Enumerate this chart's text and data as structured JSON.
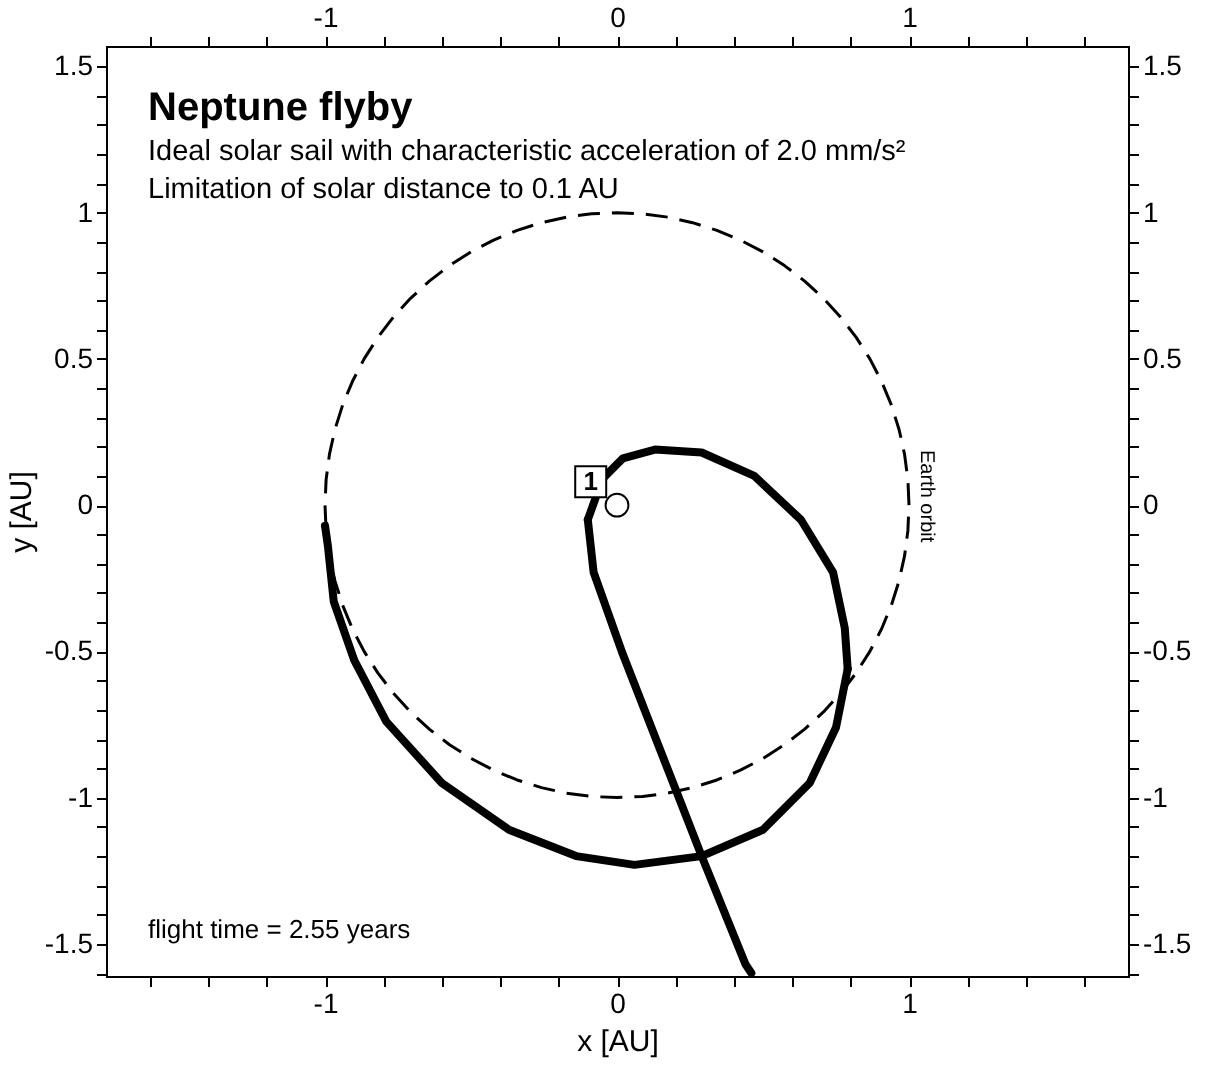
{
  "chart_data": {
    "type": "line",
    "title": "Neptune flyby",
    "subtitle": "Ideal solar sail with characteristic acceleration of 2.0 mm/s²\nLimitation of solar distance to 0.1 AU",
    "xlabel": "x [AU]",
    "ylabel": "y [AU]",
    "xlim": [
      -1.75,
      1.75
    ],
    "ylim": [
      -1.61,
      1.57
    ],
    "x2lim": [
      -1.75,
      1.75
    ],
    "y2lim": [
      -1.61,
      1.57
    ],
    "xticks": [
      {
        "value": -1.6,
        "label": null
      },
      {
        "value": -1.4,
        "label": null
      },
      {
        "value": -1.2,
        "label": null
      },
      -1,
      {
        "value": -0.8,
        "label": null
      },
      {
        "value": -0.6,
        "label": null
      },
      {
        "value": -0.4,
        "label": null
      },
      {
        "value": -0.2,
        "label": null
      },
      0,
      {
        "value": 0.2,
        "label": null
      },
      {
        "value": 0.4,
        "label": null
      },
      {
        "value": 0.6,
        "label": null
      },
      {
        "value": 0.8,
        "label": null
      },
      1,
      {
        "value": 1.2,
        "label": null
      },
      {
        "value": 1.4,
        "label": null
      },
      {
        "value": 1.6,
        "label": null
      }
    ],
    "x2ticks": [
      {
        "value": -1.6,
        "label": null
      },
      {
        "value": -1.4,
        "label": null
      },
      {
        "value": -1.2,
        "label": null
      },
      -1,
      {
        "value": -0.8,
        "label": null
      },
      {
        "value": -0.6,
        "label": null
      },
      {
        "value": -0.4,
        "label": null
      },
      {
        "value": -0.2,
        "label": null
      },
      0,
      {
        "value": 0.2,
        "label": null
      },
      {
        "value": 0.4,
        "label": null
      },
      {
        "value": 0.6,
        "label": null
      },
      {
        "value": 0.8,
        "label": null
      },
      1,
      {
        "value": 1.2,
        "label": null
      },
      {
        "value": 1.4,
        "label": null
      },
      {
        "value": 1.6,
        "label": null
      }
    ],
    "yticks": [
      {
        "value": -1.6,
        "label": null
      },
      -1.5,
      {
        "value": -1.4,
        "label": null
      },
      {
        "value": -1.3,
        "label": null
      },
      {
        "value": -1.2,
        "label": null
      },
      {
        "value": -1.1,
        "label": null
      },
      -1,
      {
        "value": -0.9,
        "label": null
      },
      {
        "value": -0.8,
        "label": null
      },
      {
        "value": -0.7,
        "label": null
      },
      {
        "value": -0.6,
        "label": null
      },
      -0.5,
      {
        "value": -0.4,
        "label": null
      },
      {
        "value": -0.3,
        "label": null
      },
      {
        "value": -0.2,
        "label": null
      },
      {
        "value": -0.1,
        "label": null
      },
      0,
      {
        "value": 0.1,
        "label": null
      },
      {
        "value": 0.2,
        "label": null
      },
      {
        "value": 0.3,
        "label": null
      },
      {
        "value": 0.4,
        "label": null
      },
      0.5,
      {
        "value": 0.6,
        "label": null
      },
      {
        "value": 0.7,
        "label": null
      },
      {
        "value": 0.8,
        "label": null
      },
      {
        "value": 0.9,
        "label": null
      },
      1,
      {
        "value": 1.1,
        "label": null
      },
      {
        "value": 1.2,
        "label": null
      },
      {
        "value": 1.3,
        "label": null
      },
      {
        "value": 1.4,
        "label": null
      },
      1.5
    ],
    "y2ticks": [
      {
        "value": -1.6,
        "label": null
      },
      -1.5,
      {
        "value": -1.4,
        "label": null
      },
      {
        "value": -1.3,
        "label": null
      },
      {
        "value": -1.2,
        "label": null
      },
      {
        "value": -1.1,
        "label": null
      },
      -1,
      {
        "value": -0.9,
        "label": null
      },
      {
        "value": -0.8,
        "label": null
      },
      {
        "value": -0.7,
        "label": null
      },
      {
        "value": -0.6,
        "label": null
      },
      -0.5,
      {
        "value": -0.4,
        "label": null
      },
      {
        "value": -0.3,
        "label": null
      },
      {
        "value": -0.2,
        "label": null
      },
      {
        "value": -0.1,
        "label": null
      },
      0,
      {
        "value": 0.1,
        "label": null
      },
      {
        "value": 0.2,
        "label": null
      },
      {
        "value": 0.3,
        "label": null
      },
      {
        "value": 0.4,
        "label": null
      },
      0.5,
      {
        "value": 0.6,
        "label": null
      },
      {
        "value": 0.7,
        "label": null
      },
      {
        "value": 0.8,
        "label": null
      },
      {
        "value": 0.9,
        "label": null
      },
      1,
      {
        "value": 1.1,
        "label": null
      },
      {
        "value": 1.2,
        "label": null
      },
      {
        "value": 1.3,
        "label": null
      },
      {
        "value": 1.4,
        "label": null
      },
      1.5
    ],
    "grid": false,
    "series": [
      {
        "line_style": "solid",
        "color": "#000000",
        "x": [
          -1.0,
          -0.99,
          -0.97,
          -0.9,
          -0.79,
          -0.6,
          -0.37,
          -0.14,
          0.06,
          0.29,
          0.5,
          0.66,
          0.75,
          0.79
        ],
        "values": [
          -0.07,
          -0.14,
          -0.33,
          -0.53,
          -0.74,
          -0.95,
          -1.11,
          -1.2,
          -1.23,
          -1.2,
          -1.11,
          -0.95,
          -0.76,
          -0.56
        ]
      },
      {
        "line_style": "solid",
        "color": "#000000",
        "x": [
          0.79,
          0.78,
          0.74,
          0.63,
          0.47,
          0.29,
          0.13,
          0.02,
          -0.05,
          -0.1
        ],
        "values": [
          -0.56,
          -0.42,
          -0.23,
          -0.05,
          0.1,
          0.18,
          0.19,
          0.16,
          0.09,
          -0.05
        ]
      },
      {
        "line_style": "solid",
        "color": "#000000",
        "x": [
          -0.1,
          -0.08,
          0.02,
          0.2,
          0.29,
          0.44,
          0.46
        ],
        "values": [
          -0.05,
          -0.23,
          -0.51,
          -0.97,
          -1.2,
          -1.57,
          -1.6
        ]
      },
      {
        "type": "scatter",
        "marker": "circle",
        "color": "#ffffff",
        "x": [
          0
        ],
        "values": [
          0
        ]
      }
    ],
    "annotations": [
      {
        "text": "1",
        "x": -0.09,
        "y": 0.08
      },
      "Earth orbit",
      "flight time = 2.55 years"
    ]
  }
}
